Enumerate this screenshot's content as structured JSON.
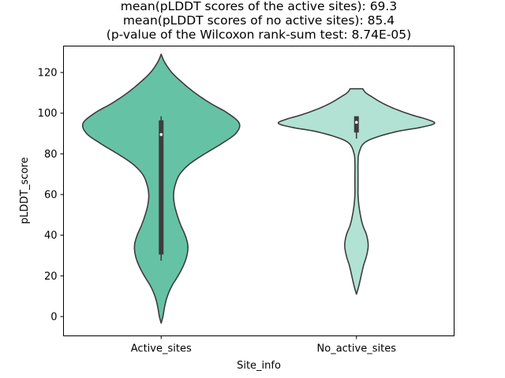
{
  "chart_data": {
    "type": "violin",
    "title_lines": [
      "mean(pLDDT scores of the active sites): 69.3",
      "mean(pLDDT scores of no active sites): 85.4",
      "(p-value of the Wilcoxon rank-sum test: 8.74E-05)"
    ],
    "xlabel": "Site_info",
    "ylabel": "pLDDT_score",
    "ylim": [
      -9.5,
      133
    ],
    "yticks": [
      0,
      20,
      40,
      60,
      80,
      100,
      120
    ],
    "categories": [
      "Active_sites",
      "No_active_sites"
    ],
    "violins": [
      {
        "name": "Active_sites",
        "color": "#66c2a5",
        "min": 27.5,
        "q1": 30.5,
        "median": 89.5,
        "q3": 96.5,
        "max": 98.5,
        "kde_range": [
          -3.2,
          129
        ],
        "density_profile": [
          [
            -3.2,
            0.0
          ],
          [
            0,
            0.02
          ],
          [
            5,
            0.04
          ],
          [
            10,
            0.07
          ],
          [
            15,
            0.12
          ],
          [
            20,
            0.19
          ],
          [
            25,
            0.25
          ],
          [
            30,
            0.29
          ],
          [
            35,
            0.3
          ],
          [
            40,
            0.27
          ],
          [
            45,
            0.22
          ],
          [
            50,
            0.18
          ],
          [
            55,
            0.15
          ],
          [
            60,
            0.14
          ],
          [
            65,
            0.16
          ],
          [
            70,
            0.21
          ],
          [
            75,
            0.32
          ],
          [
            80,
            0.49
          ],
          [
            85,
            0.68
          ],
          [
            90,
            0.84
          ],
          [
            95,
            0.88
          ],
          [
            100,
            0.75
          ],
          [
            105,
            0.55
          ],
          [
            110,
            0.38
          ],
          [
            115,
            0.24
          ],
          [
            120,
            0.12
          ],
          [
            125,
            0.04
          ],
          [
            129,
            0.0
          ]
        ]
      },
      {
        "name": "No_active_sites",
        "color": "#b2e2d3",
        "min": 87.5,
        "q1": 90.5,
        "median": 95.5,
        "q3": 98.5,
        "max": 98.5,
        "kde_range": [
          11,
          112
        ],
        "density_profile": [
          [
            11,
            0.0
          ],
          [
            15,
            0.03
          ],
          [
            20,
            0.06
          ],
          [
            25,
            0.09
          ],
          [
            30,
            0.13
          ],
          [
            35,
            0.15
          ],
          [
            40,
            0.13
          ],
          [
            45,
            0.08
          ],
          [
            50,
            0.05
          ],
          [
            55,
            0.03
          ],
          [
            60,
            0.02
          ],
          [
            65,
            0.02
          ],
          [
            70,
            0.02
          ],
          [
            75,
            0.02
          ],
          [
            80,
            0.03
          ],
          [
            85,
            0.09
          ],
          [
            88,
            0.24
          ],
          [
            91,
            0.52
          ],
          [
            93,
            0.82
          ],
          [
            95,
            1.0
          ],
          [
            97,
            0.9
          ],
          [
            99,
            0.72
          ],
          [
            102,
            0.5
          ],
          [
            105,
            0.33
          ],
          [
            108,
            0.2
          ],
          [
            110,
            0.12
          ],
          [
            112,
            0.08
          ]
        ]
      }
    ],
    "grid": false,
    "legend": "none"
  }
}
